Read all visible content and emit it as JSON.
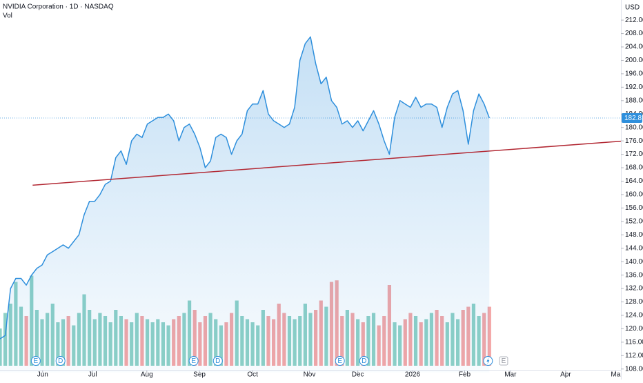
{
  "chart_data": {
    "type": "area",
    "title": "NVIDIA Corporation · 1D · NASDAQ",
    "currency": "USD",
    "series": [
      {
        "name": "NVIDIA Corporation",
        "color": "#2e8fdc",
        "values": [
          117,
          118,
          132,
          135,
          135,
          133,
          136,
          138,
          139,
          142,
          143,
          144,
          145,
          144,
          146,
          148,
          154,
          158,
          158,
          160,
          163,
          164,
          171,
          173,
          169,
          176,
          178,
          177,
          181,
          182,
          183,
          183,
          184,
          182,
          176,
          180,
          181,
          178,
          174,
          168,
          170,
          177,
          178,
          177,
          172,
          176,
          178,
          185,
          187,
          187,
          191,
          184,
          182,
          181,
          180,
          181,
          186,
          200,
          205,
          207,
          199,
          193,
          195,
          188,
          186,
          181,
          182,
          180,
          182,
          179,
          182,
          185,
          181,
          176,
          172,
          183,
          188,
          187,
          186,
          189,
          186,
          187,
          187,
          186,
          180,
          186,
          190,
          191,
          185,
          175,
          185,
          190,
          187,
          182.81
        ]
      },
      {
        "name": "Vol",
        "type": "bar",
        "up_color": "#8ed1c6",
        "down_color": "#f4a6a6",
        "values": [
          120,
          170,
          200,
          270,
          190,
          160,
          290,
          180,
          150,
          170,
          200,
          140,
          150,
          160,
          130,
          170,
          230,
          180,
          150,
          170,
          160,
          140,
          180,
          160,
          150,
          140,
          170,
          160,
          150,
          140,
          150,
          140,
          130,
          150,
          160,
          170,
          210,
          180,
          140,
          160,
          170,
          150,
          130,
          140,
          170,
          210,
          160,
          150,
          140,
          130,
          180,
          160,
          150,
          200,
          170,
          160,
          150,
          160,
          200,
          170,
          180,
          210,
          190,
          270,
          275,
          160,
          180,
          170,
          150,
          140,
          160,
          170,
          130,
          160,
          260,
          140,
          130,
          150,
          170,
          160,
          140,
          150,
          170,
          180,
          160,
          140,
          170,
          150,
          180,
          190,
          200,
          160,
          170,
          190
        ],
        "ylim": [
          0,
          600
        ]
      }
    ],
    "xlim": [
      0,
      118
    ],
    "xticks": [
      {
        "value": 8.1,
        "label": "Jun"
      },
      {
        "value": 17.6,
        "label": "Jul"
      },
      {
        "value": 27.9,
        "label": "Aug"
      },
      {
        "value": 37.9,
        "label": "Sep"
      },
      {
        "value": 48,
        "label": "Oct"
      },
      {
        "value": 58.8,
        "label": "Nov"
      },
      {
        "value": 68,
        "label": "Dec"
      },
      {
        "value": 78.4,
        "label": "2026"
      },
      {
        "value": 88.3,
        "label": "Feb"
      },
      {
        "value": 97,
        "label": "Mar"
      },
      {
        "value": 107.5,
        "label": "Apr"
      },
      {
        "value": 117,
        "label": "Ma"
      }
    ],
    "ylim": [
      107,
      214
    ],
    "yticks": [
      {
        "value": 108,
        "label": "108.00"
      },
      {
        "value": 112,
        "label": "112.00"
      },
      {
        "value": 116,
        "label": "116.00"
      },
      {
        "value": 120,
        "label": "120.00"
      },
      {
        "value": 124,
        "label": "124.00"
      },
      {
        "value": 128,
        "label": "128.00"
      },
      {
        "value": 132,
        "label": "132.00"
      },
      {
        "value": 136,
        "label": "136.00"
      },
      {
        "value": 140,
        "label": "140.00"
      },
      {
        "value": 144,
        "label": "144.00"
      },
      {
        "value": 148,
        "label": "148.00"
      },
      {
        "value": 152,
        "label": "152.00"
      },
      {
        "value": 156,
        "label": "156.00"
      },
      {
        "value": 160,
        "label": "160.00"
      },
      {
        "value": 164,
        "label": "164.00"
      },
      {
        "value": 168,
        "label": "168.00"
      },
      {
        "value": 172,
        "label": "172.00"
      },
      {
        "value": 176,
        "label": "176.00"
      },
      {
        "value": 180,
        "label": "180.00"
      },
      {
        "value": 184,
        "label": "184.00"
      },
      {
        "value": 188,
        "label": "188.00"
      },
      {
        "value": 192,
        "label": "192.00"
      },
      {
        "value": 196,
        "label": "196.00"
      },
      {
        "value": 200,
        "label": "200.00"
      },
      {
        "value": 204,
        "label": "204.00"
      },
      {
        "value": 208,
        "label": "208.00"
      },
      {
        "value": 212,
        "label": "212.00"
      }
    ],
    "trendline": {
      "x": [
        6.2,
        118
      ],
      "y": [
        162.8,
        175.9
      ],
      "color": "#b22833"
    },
    "events": [
      {
        "label": "E",
        "x": 6.8
      },
      {
        "label": "D",
        "x": 11.5
      },
      {
        "label": "E",
        "x": 36.8
      },
      {
        "label": "D",
        "x": 41.4
      },
      {
        "label": "E",
        "x": 64.6
      },
      {
        "label": "D",
        "x": 69.2
      },
      {
        "label": "E",
        "x": 95.7
      }
    ]
  }
}
